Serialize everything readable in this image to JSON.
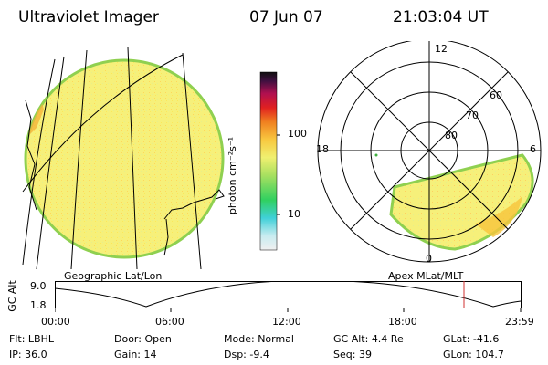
{
  "header": {
    "instrument": "Ultraviolet Imager",
    "date": "07 Jun 07",
    "time": "21:03:04 UT"
  },
  "geo_panel": {
    "label": "Geographic Lat/Lon"
  },
  "apex_panel": {
    "label": "Apex MLat/MLT",
    "mlt_labels": {
      "top": "12",
      "left": "18",
      "right": "6",
      "bottom": "0"
    },
    "lat_labels": [
      "60",
      "70",
      "80"
    ]
  },
  "colorbar": {
    "unit_label": "photon cm⁻²s⁻¹",
    "ticks": [
      "100",
      "10"
    ]
  },
  "gc_alt_plot": {
    "ylabel": "GC Alt",
    "ymax": "9.0",
    "ymin": "1.8",
    "xticks": [
      "00:00",
      "06:00",
      "12:00",
      "18:00",
      "23:59"
    ]
  },
  "info": {
    "row1": [
      {
        "label": "Flt:",
        "value": "LBHL"
      },
      {
        "label": "Door:",
        "value": "Open"
      },
      {
        "label": "Mode:",
        "value": "Normal"
      },
      {
        "label": "GC Alt:",
        "value": "4.4 Re"
      },
      {
        "label": "GLat:",
        "value": "-41.6"
      }
    ],
    "row2": [
      {
        "label": "IP:",
        "value": "36.0"
      },
      {
        "label": "Gain:",
        "value": "14"
      },
      {
        "label": "Dsp:",
        "value": "-9.4"
      },
      {
        "label": "Seq:",
        "value": "39"
      },
      {
        "label": "GLon:",
        "value": "104.7"
      }
    ]
  },
  "colors": {
    "ring_edge": "#8fd050",
    "fill_main": "#f6f07a",
    "fill_bright": "#f8c43c",
    "current_time_marker": "#d03030"
  }
}
